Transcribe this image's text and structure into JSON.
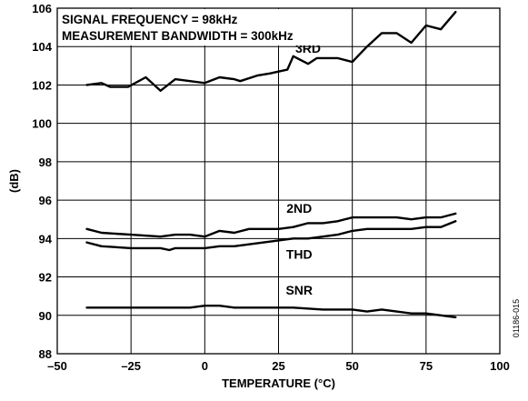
{
  "chart_data": {
    "type": "line",
    "xlabel": "TEMPERATURE (°C)",
    "ylabel": "(dB)",
    "xlim": [
      -50,
      100
    ],
    "ylim": [
      88,
      106
    ],
    "xticks": [
      -50,
      -25,
      0,
      25,
      50,
      75,
      100
    ],
    "xtick_labels": [
      "–50",
      "–25",
      "0",
      "25",
      "50",
      "75",
      "100"
    ],
    "yticks": [
      88,
      90,
      92,
      94,
      96,
      98,
      100,
      102,
      104,
      106
    ],
    "grid": true,
    "annotation_lines": [
      "SIGNAL FREQUENCY = 98kHz",
      "MEASUREMENT BANDWIDTH = 300kHz"
    ],
    "figure_id": "01186-015",
    "series": [
      {
        "name": "3RD",
        "x": [
          -40,
          -35,
          -32,
          -26,
          -20,
          -15,
          -10,
          -5,
          0,
          5,
          10,
          12,
          18,
          22,
          25,
          28,
          30,
          35,
          38,
          45,
          50,
          55,
          60,
          65,
          70,
          75,
          80,
          85
        ],
        "y": [
          102.0,
          102.1,
          101.9,
          101.9,
          102.4,
          101.7,
          102.3,
          102.2,
          102.1,
          102.4,
          102.3,
          102.2,
          102.5,
          102.6,
          102.7,
          102.8,
          103.5,
          103.1,
          103.4,
          103.4,
          103.2,
          104.0,
          104.7,
          104.7,
          104.2,
          105.1,
          104.9,
          105.8
        ]
      },
      {
        "name": "2ND",
        "x": [
          -40,
          -35,
          -25,
          -15,
          -10,
          -5,
          0,
          5,
          10,
          15,
          20,
          25,
          30,
          35,
          40,
          45,
          50,
          55,
          60,
          65,
          70,
          75,
          80,
          85
        ],
        "y": [
          94.5,
          94.3,
          94.2,
          94.1,
          94.2,
          94.2,
          94.1,
          94.4,
          94.3,
          94.5,
          94.5,
          94.5,
          94.6,
          94.8,
          94.8,
          94.9,
          95.1,
          95.1,
          95.1,
          95.1,
          95.0,
          95.1,
          95.1,
          95.3
        ]
      },
      {
        "name": "THD",
        "x": [
          -40,
          -35,
          -25,
          -15,
          -12,
          -10,
          -5,
          0,
          5,
          10,
          15,
          20,
          25,
          30,
          35,
          40,
          45,
          50,
          55,
          60,
          65,
          70,
          75,
          80,
          85
        ],
        "y": [
          93.8,
          93.6,
          93.5,
          93.5,
          93.4,
          93.5,
          93.5,
          93.5,
          93.6,
          93.6,
          93.7,
          93.8,
          93.9,
          94.0,
          94.0,
          94.1,
          94.2,
          94.4,
          94.5,
          94.5,
          94.5,
          94.5,
          94.6,
          94.6,
          94.9
        ]
      },
      {
        "name": "SNR",
        "x": [
          -40,
          -30,
          -20,
          -10,
          -5,
          0,
          5,
          10,
          20,
          30,
          40,
          50,
          55,
          60,
          65,
          70,
          75,
          80,
          85
        ],
        "y": [
          90.4,
          90.4,
          90.4,
          90.4,
          90.4,
          90.5,
          90.5,
          90.4,
          90.4,
          90.4,
          90.3,
          90.3,
          90.2,
          90.3,
          90.2,
          90.1,
          90.1,
          90.0,
          89.9
        ]
      }
    ]
  }
}
